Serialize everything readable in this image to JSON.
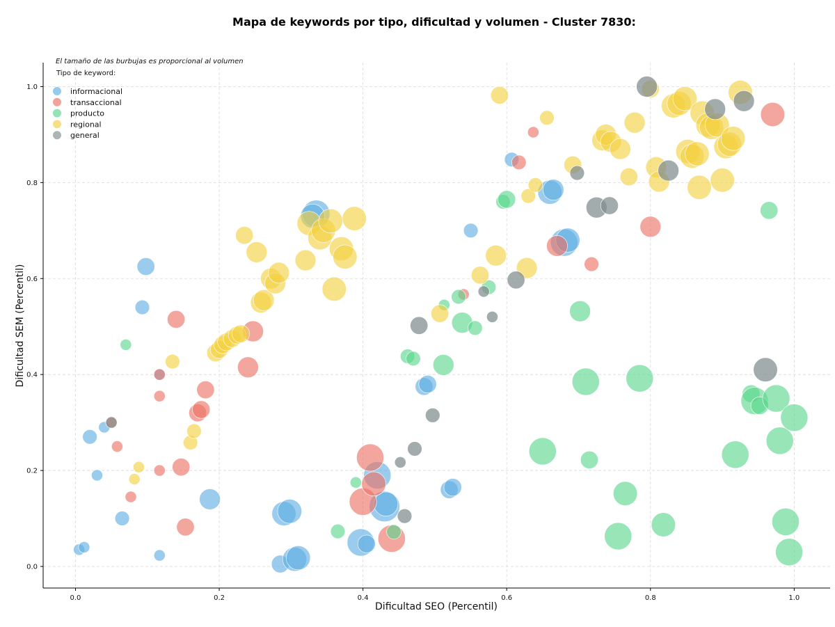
{
  "chart_data": {
    "type": "scatter",
    "title": "Mapa de keywords por tipo, dificultad y volumen - Cluster 7830:",
    "xlabel": "Dificultad SEO (Percentil)",
    "ylabel": "Dificultad SEM (Percentil)",
    "xlim": [
      -0.045,
      1.05
    ],
    "ylim": [
      -0.045,
      1.05
    ],
    "xticks": [
      "0.0",
      "0.2",
      "0.4",
      "0.6",
      "0.8",
      "1.0"
    ],
    "yticks": [
      "0.0",
      "0.2",
      "0.4",
      "0.6",
      "0.8",
      "1.0"
    ],
    "grid": true,
    "legend_position": "top-left",
    "note": "El tamaño de las burbujas es proporcional al volumen",
    "legend_title": "Tipo de keyword:",
    "series": [
      {
        "name": "informacional",
        "color": "#5dade2",
        "points": [
          [
            0.005,
            0.035,
            2
          ],
          [
            0.012,
            0.04,
            2
          ],
          [
            0.02,
            0.27,
            3
          ],
          [
            0.03,
            0.19,
            2
          ],
          [
            0.04,
            0.29,
            2
          ],
          [
            0.065,
            0.1,
            3
          ],
          [
            0.093,
            0.54,
            3
          ],
          [
            0.098,
            0.625,
            4
          ],
          [
            0.117,
            0.4,
            2
          ],
          [
            0.117,
            0.023,
            2
          ],
          [
            0.187,
            0.14,
            5
          ],
          [
            0.29,
            0.11,
            6
          ],
          [
            0.298,
            0.115,
            6
          ],
          [
            0.285,
            0.005,
            4
          ],
          [
            0.305,
            0.015,
            6
          ],
          [
            0.31,
            0.018,
            6
          ],
          [
            0.335,
            0.735,
            7
          ],
          [
            0.33,
            0.73,
            6
          ],
          [
            0.397,
            0.05,
            7
          ],
          [
            0.405,
            0.047,
            4
          ],
          [
            0.42,
            0.19,
            7
          ],
          [
            0.43,
            0.125,
            8
          ],
          [
            0.432,
            0.13,
            6
          ],
          [
            0.485,
            0.375,
            4
          ],
          [
            0.49,
            0.38,
            4
          ],
          [
            0.52,
            0.16,
            4
          ],
          [
            0.525,
            0.165,
            4
          ],
          [
            0.55,
            0.7,
            3
          ],
          [
            0.607,
            0.848,
            3
          ],
          [
            0.66,
            0.78,
            6
          ],
          [
            0.665,
            0.785,
            5
          ],
          [
            0.68,
            0.675,
            7
          ],
          [
            0.685,
            0.68,
            6
          ]
        ]
      },
      {
        "name": "transaccional",
        "color": "#ec7063",
        "points": [
          [
            0.05,
            0.3,
            2
          ],
          [
            0.058,
            0.25,
            2
          ],
          [
            0.077,
            0.145,
            2
          ],
          [
            0.117,
            0.4,
            2
          ],
          [
            0.117,
            0.355,
            2
          ],
          [
            0.117,
            0.2,
            2
          ],
          [
            0.14,
            0.515,
            4
          ],
          [
            0.147,
            0.207,
            4
          ],
          [
            0.153,
            0.082,
            4
          ],
          [
            0.17,
            0.32,
            4
          ],
          [
            0.175,
            0.327,
            4
          ],
          [
            0.181,
            0.368,
            4
          ],
          [
            0.24,
            0.415,
            5
          ],
          [
            0.247,
            0.49,
            5
          ],
          [
            0.41,
            0.227,
            7
          ],
          [
            0.4,
            0.135,
            7
          ],
          [
            0.415,
            0.172,
            6
          ],
          [
            0.44,
            0.058,
            7
          ],
          [
            0.54,
            0.567,
            2
          ],
          [
            0.617,
            0.842,
            3
          ],
          [
            0.637,
            0.905,
            2
          ],
          [
            0.67,
            0.668,
            5
          ],
          [
            0.718,
            0.63,
            3
          ],
          [
            0.8,
            0.708,
            5
          ],
          [
            0.97,
            0.942,
            6
          ]
        ]
      },
      {
        "name": "producto",
        "color": "#58d68d",
        "points": [
          [
            0.07,
            0.462,
            2
          ],
          [
            0.39,
            0.175,
            2
          ],
          [
            0.365,
            0.073,
            3
          ],
          [
            0.443,
            0.072,
            3
          ],
          [
            0.462,
            0.438,
            3
          ],
          [
            0.47,
            0.433,
            3
          ],
          [
            0.513,
            0.545,
            2
          ],
          [
            0.512,
            0.42,
            5
          ],
          [
            0.533,
            0.562,
            3
          ],
          [
            0.538,
            0.508,
            5
          ],
          [
            0.556,
            0.497,
            3
          ],
          [
            0.575,
            0.582,
            3
          ],
          [
            0.595,
            0.76,
            3
          ],
          [
            0.6,
            0.765,
            4
          ],
          [
            0.65,
            0.24,
            7
          ],
          [
            0.702,
            0.532,
            5
          ],
          [
            0.71,
            0.385,
            7
          ],
          [
            0.715,
            0.222,
            4
          ],
          [
            0.755,
            0.063,
            7
          ],
          [
            0.765,
            0.152,
            6
          ],
          [
            0.785,
            0.392,
            7
          ],
          [
            0.818,
            0.087,
            6
          ],
          [
            0.918,
            0.233,
            7
          ],
          [
            0.94,
            0.36,
            4
          ],
          [
            0.945,
            0.345,
            7
          ],
          [
            0.952,
            0.335,
            4
          ],
          [
            0.965,
            0.742,
            4
          ],
          [
            0.975,
            0.35,
            7
          ],
          [
            0.98,
            0.262,
            7
          ],
          [
            0.988,
            0.093,
            7
          ],
          [
            0.993,
            0.03,
            7
          ],
          [
            1.0,
            0.31,
            7
          ]
        ]
      },
      {
        "name": "regional",
        "color": "#f4d03f",
        "points": [
          [
            0.082,
            0.182,
            2
          ],
          [
            0.088,
            0.207,
            2
          ],
          [
            0.135,
            0.427,
            3
          ],
          [
            0.16,
            0.258,
            3
          ],
          [
            0.165,
            0.282,
            3
          ],
          [
            0.195,
            0.445,
            4
          ],
          [
            0.2,
            0.452,
            4
          ],
          [
            0.205,
            0.462,
            4
          ],
          [
            0.21,
            0.468,
            4
          ],
          [
            0.218,
            0.475,
            4
          ],
          [
            0.225,
            0.482,
            4
          ],
          [
            0.23,
            0.485,
            4
          ],
          [
            0.235,
            0.69,
            4
          ],
          [
            0.252,
            0.655,
            5
          ],
          [
            0.258,
            0.55,
            5
          ],
          [
            0.262,
            0.555,
            5
          ],
          [
            0.272,
            0.6,
            5
          ],
          [
            0.278,
            0.59,
            5
          ],
          [
            0.283,
            0.612,
            5
          ],
          [
            0.32,
            0.638,
            5
          ],
          [
            0.325,
            0.715,
            6
          ],
          [
            0.34,
            0.685,
            6
          ],
          [
            0.345,
            0.7,
            6
          ],
          [
            0.355,
            0.72,
            6
          ],
          [
            0.36,
            0.578,
            6
          ],
          [
            0.37,
            0.662,
            6
          ],
          [
            0.375,
            0.645,
            6
          ],
          [
            0.388,
            0.725,
            6
          ],
          [
            0.507,
            0.527,
            4
          ],
          [
            0.563,
            0.607,
            4
          ],
          [
            0.585,
            0.648,
            5
          ],
          [
            0.59,
            0.982,
            4
          ],
          [
            0.628,
            0.622,
            5
          ],
          [
            0.63,
            0.772,
            3
          ],
          [
            0.64,
            0.795,
            3
          ],
          [
            0.656,
            0.935,
            3
          ],
          [
            0.692,
            0.837,
            4
          ],
          [
            0.733,
            0.888,
            5
          ],
          [
            0.738,
            0.9,
            5
          ],
          [
            0.745,
            0.885,
            5
          ],
          [
            0.758,
            0.87,
            5
          ],
          [
            0.77,
            0.812,
            4
          ],
          [
            0.778,
            0.925,
            5
          ],
          [
            0.8,
            0.995,
            4
          ],
          [
            0.808,
            0.832,
            5
          ],
          [
            0.812,
            0.802,
            5
          ],
          [
            0.832,
            0.96,
            6
          ],
          [
            0.84,
            0.965,
            6
          ],
          [
            0.848,
            0.975,
            6
          ],
          [
            0.852,
            0.865,
            6
          ],
          [
            0.858,
            0.855,
            6
          ],
          [
            0.865,
            0.86,
            6
          ],
          [
            0.868,
            0.79,
            6
          ],
          [
            0.872,
            0.945,
            6
          ],
          [
            0.88,
            0.92,
            6
          ],
          [
            0.885,
            0.915,
            6
          ],
          [
            0.893,
            0.92,
            6
          ],
          [
            0.9,
            0.805,
            6
          ],
          [
            0.905,
            0.875,
            6
          ],
          [
            0.91,
            0.88,
            6
          ],
          [
            0.915,
            0.892,
            6
          ],
          [
            0.925,
            0.988,
            6
          ]
        ]
      },
      {
        "name": "general",
        "color": "#7f8c8d",
        "points": [
          [
            0.05,
            0.3,
            2
          ],
          [
            0.452,
            0.217,
            2
          ],
          [
            0.458,
            0.105,
            3
          ],
          [
            0.472,
            0.245,
            3
          ],
          [
            0.478,
            0.502,
            4
          ],
          [
            0.497,
            0.315,
            3
          ],
          [
            0.568,
            0.573,
            2
          ],
          [
            0.58,
            0.52,
            2
          ],
          [
            0.613,
            0.597,
            4
          ],
          [
            0.698,
            0.82,
            3
          ],
          [
            0.725,
            0.748,
            5
          ],
          [
            0.743,
            0.752,
            4
          ],
          [
            0.795,
            1.0,
            5
          ],
          [
            0.825,
            0.825,
            5
          ],
          [
            0.89,
            0.953,
            5
          ],
          [
            0.93,
            0.97,
            5
          ],
          [
            0.96,
            0.41,
            6
          ]
        ]
      }
    ]
  }
}
